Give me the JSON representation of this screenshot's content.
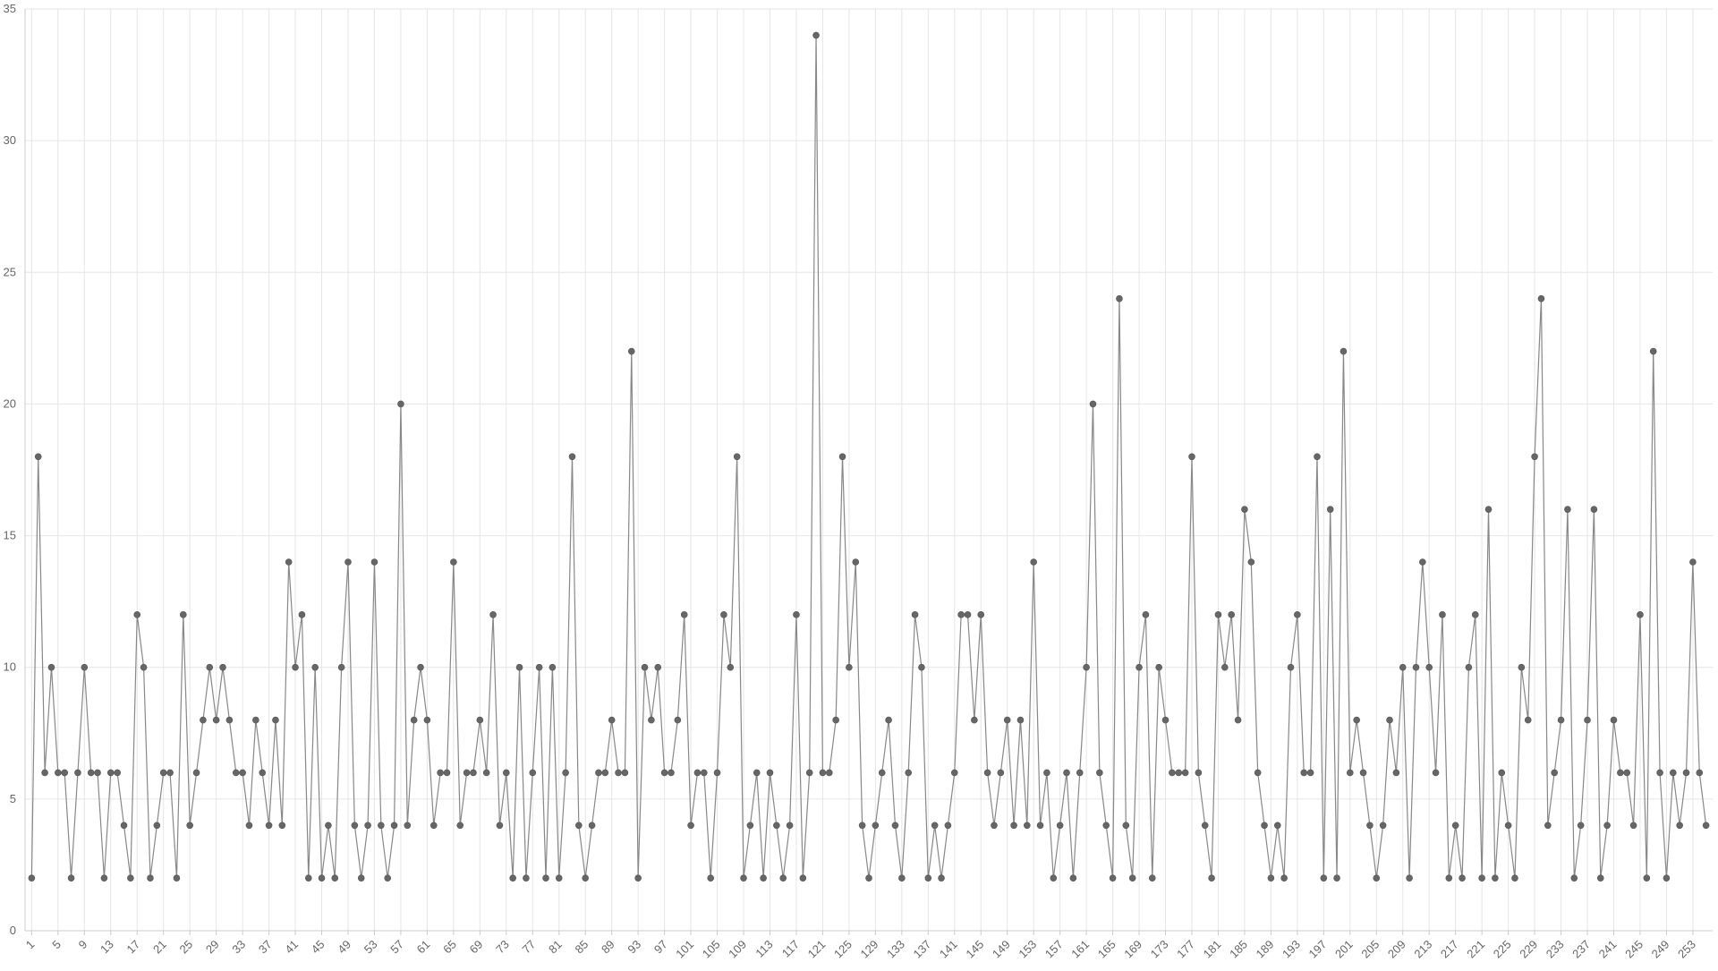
{
  "chart_data": {
    "type": "line",
    "title": "",
    "xlabel": "",
    "ylabel": "",
    "x_start": 1,
    "x_tick_labels": [
      "1",
      "5",
      "9",
      "13",
      "17",
      "21",
      "25",
      "29",
      "33",
      "37",
      "41",
      "45",
      "49",
      "53",
      "57",
      "61",
      "65",
      "69",
      "73",
      "77",
      "81",
      "85",
      "89",
      "93",
      "97",
      "101",
      "105",
      "109",
      "113",
      "117",
      "121",
      "125",
      "129",
      "133",
      "137",
      "141",
      "145",
      "149",
      "153",
      "157",
      "161",
      "165",
      "169",
      "173",
      "177",
      "181",
      "185",
      "189",
      "193",
      "197",
      "201",
      "205",
      "209",
      "213",
      "217",
      "221",
      "225",
      "229",
      "233",
      "237",
      "241",
      "245",
      "249",
      "253"
    ],
    "y_ticks": [
      "0",
      "5",
      "10",
      "15",
      "20",
      "25",
      "30",
      "35"
    ],
    "ylim": [
      0,
      35
    ],
    "xlim": [
      0,
      256
    ],
    "grid": true,
    "colors": {
      "line": "#888888",
      "marker": "#666666",
      "grid": "#e6e6e6",
      "axis": "#cccccc"
    },
    "series": [
      {
        "name": "",
        "values": [
          2,
          18,
          6,
          10,
          6,
          6,
          2,
          6,
          10,
          6,
          6,
          2,
          6,
          6,
          4,
          2,
          12,
          10,
          2,
          4,
          6,
          6,
          2,
          12,
          4,
          6,
          8,
          10,
          8,
          10,
          8,
          6,
          6,
          4,
          8,
          6,
          4,
          8,
          4,
          14,
          10,
          12,
          2,
          10,
          2,
          4,
          2,
          10,
          14,
          4,
          2,
          4,
          14,
          4,
          2,
          4,
          20,
          4,
          8,
          10,
          8,
          4,
          6,
          6,
          14,
          4,
          6,
          6,
          8,
          6,
          12,
          4,
          6,
          2,
          10,
          2,
          6,
          10,
          2,
          10,
          2,
          6,
          18,
          4,
          2,
          4,
          6,
          6,
          8,
          6,
          6,
          22,
          2,
          10,
          8,
          10,
          6,
          6,
          8,
          12,
          4,
          6,
          6,
          2,
          6,
          12,
          10,
          18,
          2,
          4,
          6,
          2,
          6,
          4,
          2,
          4,
          12,
          2,
          6,
          34,
          6,
          6,
          8,
          18,
          10,
          14,
          4,
          2,
          4,
          6,
          8,
          4,
          2,
          6,
          12,
          10,
          2,
          4,
          2,
          4,
          6,
          12,
          12,
          8,
          12,
          6,
          4,
          6,
          8,
          4,
          8,
          4,
          14,
          4,
          6,
          2,
          4,
          6,
          2,
          6,
          10,
          20,
          6,
          4,
          2,
          24,
          4,
          2,
          10,
          12,
          2,
          10,
          8,
          6,
          6,
          6,
          18,
          6,
          4,
          2,
          12,
          10,
          12,
          8,
          16,
          14,
          6,
          4,
          2,
          4,
          2,
          10,
          12,
          6,
          6,
          18,
          2,
          16,
          2,
          22,
          6,
          8,
          6,
          4,
          2,
          4,
          8,
          6,
          10,
          2,
          10,
          14,
          10,
          6,
          12,
          2,
          4,
          2,
          10,
          12,
          2,
          16,
          2,
          6,
          4,
          2,
          10,
          8,
          18,
          24,
          4,
          6,
          8,
          16,
          2,
          4,
          8,
          16,
          2,
          4,
          8,
          6,
          6,
          4,
          12,
          2,
          22,
          6,
          2,
          6,
          4,
          6,
          14,
          6,
          4
        ]
      }
    ]
  }
}
